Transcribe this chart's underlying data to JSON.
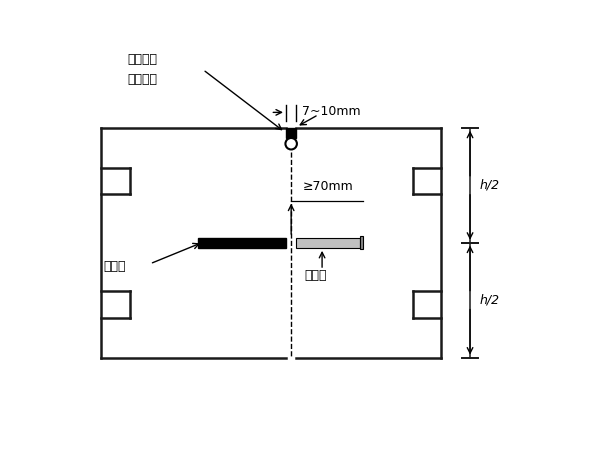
{
  "bg_color": "#ffffff",
  "line_color": "#1a1a1a",
  "figsize": [
    6.0,
    4.5
  ],
  "dpi": 100,
  "labels": {
    "title1": "灌填缝料",
    "title2": "背衬帮条",
    "dim1": "7~10mm",
    "dim2": "≥70mm",
    "label1": "涂沥青",
    "label2": "传力杆",
    "h2_top": "h/2",
    "h2_bot": "h/2"
  }
}
